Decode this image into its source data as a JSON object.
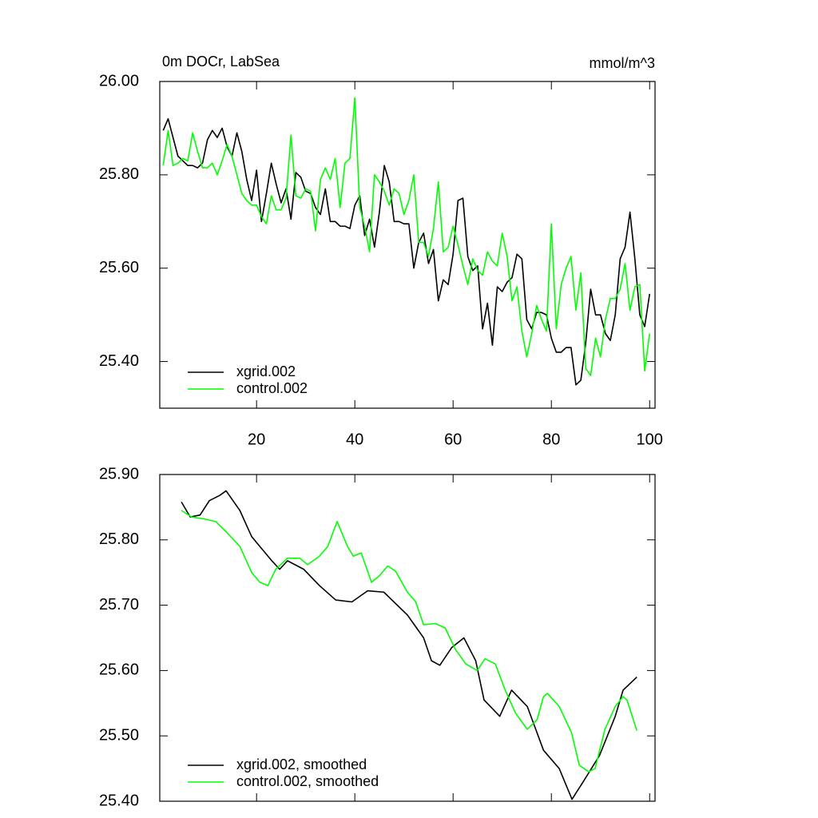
{
  "chart_data": [
    {
      "type": "line",
      "title": "0m DOCr, LabSea",
      "units": "mmol/m^3",
      "legend": "lower left",
      "x": [
        1,
        2,
        3,
        4,
        5,
        6,
        7,
        8,
        9,
        10,
        11,
        12,
        13,
        14,
        15,
        16,
        17,
        18,
        19,
        20,
        21,
        22,
        23,
        24,
        25,
        26,
        27,
        28,
        29,
        30,
        31,
        32,
        33,
        34,
        35,
        36,
        37,
        38,
        39,
        40,
        41,
        42,
        43,
        44,
        45,
        46,
        47,
        48,
        49,
        50,
        51,
        52,
        53,
        54,
        55,
        56,
        57,
        58,
        59,
        60,
        61,
        62,
        63,
        64,
        65,
        66,
        67,
        68,
        69,
        70,
        71,
        72,
        73,
        74,
        75,
        76,
        77,
        78,
        79,
        80,
        81,
        82,
        83,
        84,
        85,
        86,
        87,
        88,
        89,
        90,
        91,
        92,
        93,
        94,
        95,
        96,
        97,
        98,
        99,
        100
      ],
      "xlim": [
        0.3,
        101.1
      ],
      "xticks": [
        20,
        40,
        60,
        80,
        100
      ],
      "xtick_labels": true,
      "ylim": [
        25.3,
        26.0
      ],
      "yticks": [
        {
          "value": 25.4,
          "label": "25.40"
        },
        {
          "value": 25.6,
          "label": "25.60"
        },
        {
          "value": 25.8,
          "label": "25.80"
        },
        {
          "value": 26.0,
          "label": "26.00"
        }
      ],
      "series": [
        {
          "name": "xgrid.002",
          "color": "#000000",
          "values": [
            25.895,
            25.92,
            25.88,
            25.84,
            25.83,
            25.82,
            25.82,
            25.815,
            25.825,
            25.875,
            25.895,
            25.88,
            25.9,
            25.86,
            25.84,
            25.89,
            25.85,
            25.79,
            25.745,
            25.81,
            25.7,
            25.76,
            25.825,
            25.78,
            25.74,
            25.77,
            25.705,
            25.805,
            25.795,
            25.765,
            25.76,
            25.73,
            25.715,
            25.77,
            25.7,
            25.7,
            25.69,
            25.69,
            25.685,
            25.735,
            25.755,
            25.67,
            25.705,
            25.645,
            25.72,
            25.82,
            25.785,
            25.7,
            25.7,
            25.695,
            25.695,
            25.6,
            25.655,
            25.675,
            25.61,
            25.64,
            25.53,
            25.575,
            25.565,
            25.63,
            25.745,
            25.75,
            25.625,
            25.595,
            25.605,
            25.47,
            25.525,
            25.435,
            25.56,
            25.55,
            25.57,
            25.58,
            25.63,
            25.62,
            25.49,
            25.47,
            25.505,
            25.505,
            25.5,
            25.45,
            25.42,
            25.42,
            25.43,
            25.43,
            25.35,
            25.36,
            25.44,
            25.555,
            25.5,
            25.5,
            25.46,
            25.445,
            25.5,
            25.62,
            25.645,
            25.72,
            25.62,
            25.5,
            25.475,
            25.545
          ]
        },
        {
          "name": "control.002",
          "color": "#00ff00",
          "values": [
            25.82,
            25.895,
            25.82,
            25.825,
            25.835,
            25.83,
            25.89,
            25.85,
            25.815,
            25.815,
            25.825,
            25.8,
            25.83,
            25.865,
            25.84,
            25.8,
            25.76,
            25.745,
            25.735,
            25.735,
            25.71,
            25.695,
            25.755,
            25.725,
            25.725,
            25.75,
            25.885,
            25.755,
            25.75,
            25.77,
            25.765,
            25.68,
            25.79,
            25.815,
            25.79,
            25.835,
            25.73,
            25.825,
            25.835,
            25.965,
            25.73,
            25.69,
            25.635,
            25.8,
            25.785,
            25.765,
            25.735,
            25.77,
            25.76,
            25.715,
            25.745,
            25.8,
            25.655,
            25.655,
            25.625,
            25.685,
            25.785,
            25.635,
            25.645,
            25.69,
            25.65,
            25.605,
            25.565,
            25.62,
            25.595,
            25.585,
            25.635,
            25.615,
            25.605,
            25.675,
            25.625,
            25.53,
            25.56,
            25.465,
            25.41,
            25.46,
            25.52,
            25.49,
            25.465,
            25.695,
            25.47,
            25.565,
            25.6,
            25.625,
            25.51,
            25.59,
            25.385,
            25.37,
            25.45,
            25.41,
            25.49,
            25.535,
            25.535,
            25.555,
            25.61,
            25.51,
            25.56,
            25.565,
            25.38,
            25.46
          ]
        }
      ]
    },
    {
      "type": "line",
      "legend": "lower left",
      "xlim": [
        0.3,
        101.1
      ],
      "xticks": [
        20,
        40,
        60,
        80,
        100
      ],
      "xtick_labels": false,
      "ylim": [
        25.4,
        25.9
      ],
      "yticks": [
        {
          "value": 25.4,
          "label": "25.40"
        },
        {
          "value": 25.5,
          "label": "25.50"
        },
        {
          "value": 25.6,
          "label": "25.60"
        },
        {
          "value": 25.7,
          "label": "25.70"
        },
        {
          "value": 25.8,
          "label": "25.80"
        },
        {
          "value": 25.9,
          "label": "25.90"
        }
      ],
      "series": [
        {
          "name": "xgrid.002, smoothed",
          "color": "#000000",
          "x": [
            4.7,
            6.5,
            8.5,
            10.4,
            12.5,
            13.8,
            16.6,
            19.0,
            23.1,
            24.7,
            26.3,
            29.6,
            32.8,
            36.1,
            39.4,
            42.6,
            45.9,
            50.7,
            54.0,
            55.6,
            57.3,
            59.7,
            62.2,
            64.6,
            66.3,
            69.5,
            71.9,
            75.1,
            78.4,
            81.6,
            84.2,
            86.5,
            89.8,
            93.0,
            94.6,
            97.4
          ],
          "values": [
            25.858,
            25.835,
            25.838,
            25.86,
            25.868,
            25.875,
            25.845,
            25.805,
            25.768,
            25.755,
            25.768,
            25.755,
            25.73,
            25.708,
            25.705,
            25.722,
            25.72,
            25.685,
            25.65,
            25.615,
            25.608,
            25.635,
            25.65,
            25.615,
            25.555,
            25.53,
            25.57,
            25.545,
            25.478,
            25.45,
            25.403,
            25.43,
            25.47,
            25.53,
            25.57,
            25.59
          ]
        },
        {
          "name": "control.002, smoothed",
          "color": "#00ff00",
          "x": [
            4.7,
            6.8,
            9.3,
            11.7,
            14.1,
            16.6,
            19.0,
            20.7,
            22.3,
            23.9,
            26.3,
            28.8,
            30.4,
            32.8,
            34.5,
            36.4,
            38.5,
            39.7,
            41.3,
            43.4,
            45.0,
            46.7,
            48.3,
            50.7,
            52.4,
            54.0,
            56.4,
            58.4,
            60.5,
            62.6,
            64.9,
            66.5,
            68.6,
            70.6,
            72.7,
            75.1,
            77.1,
            78.4,
            79.2,
            81.6,
            84.1,
            85.7,
            87.6,
            88.9,
            90.9,
            93.0,
            94.6,
            95.4,
            97.4
          ],
          "values": [
            25.845,
            25.835,
            25.832,
            25.828,
            25.81,
            25.79,
            25.75,
            25.735,
            25.73,
            25.755,
            25.772,
            25.772,
            25.762,
            25.775,
            25.79,
            25.828,
            25.79,
            25.775,
            25.78,
            25.735,
            25.745,
            25.76,
            25.752,
            25.72,
            25.705,
            25.67,
            25.672,
            25.665,
            25.632,
            25.61,
            25.6,
            25.618,
            25.61,
            25.57,
            25.535,
            25.51,
            25.525,
            25.56,
            25.565,
            25.545,
            25.505,
            25.455,
            25.445,
            25.45,
            25.51,
            25.545,
            25.56,
            25.555,
            25.508
          ]
        }
      ]
    }
  ]
}
